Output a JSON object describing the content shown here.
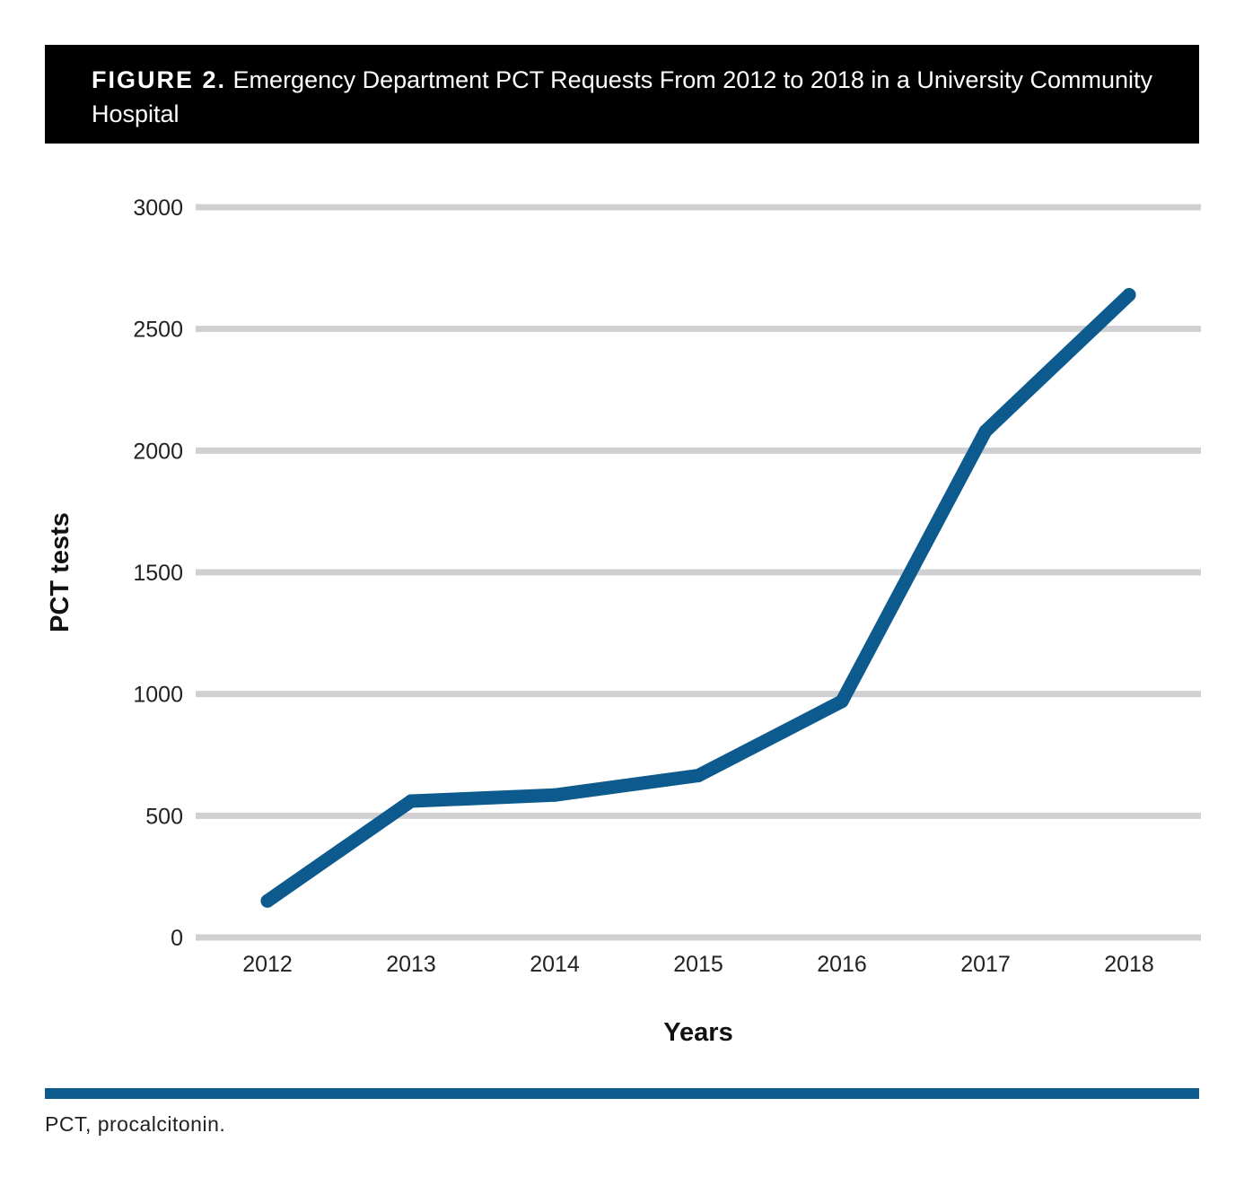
{
  "header": {
    "label": "FIGURE 2.",
    "title": "Emergency Department PCT Requests From 2012 to 2018 in a University Community Hospital"
  },
  "colors": {
    "line": "#0c5a8e",
    "grid": "#d0d0d2",
    "header_bg": "#000000",
    "rule": "#0c5a8e"
  },
  "chart_data": {
    "type": "line",
    "title": "Emergency Department PCT Requests From 2012 to 2018 in a University Community Hospital",
    "xlabel": "Years",
    "ylabel": "PCT tests",
    "categories": [
      "2012",
      "2013",
      "2014",
      "2015",
      "2016",
      "2017",
      "2018"
    ],
    "series": [
      {
        "name": "PCT tests",
        "values": [
          150,
          560,
          585,
          665,
          970,
          2080,
          2640
        ]
      }
    ],
    "ylim": [
      0,
      3000
    ],
    "yticks": [
      0,
      500,
      1000,
      1500,
      2000,
      2500,
      3000
    ],
    "grid": true,
    "legend": "none"
  },
  "footnote": "PCT, procalcitonin."
}
